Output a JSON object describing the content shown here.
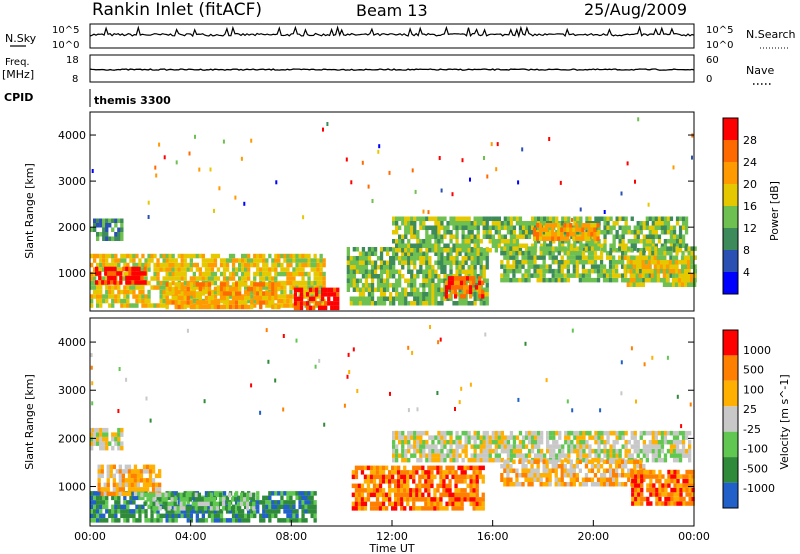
{
  "header": {
    "station": "Rankin Inlet (fitACF)",
    "beam": "Beam 13",
    "date": "25/Aug/2009"
  },
  "strip_labels": {
    "nsky": "N.Sky",
    "nsearch": "N.Search",
    "freq": "Freq.",
    "freq_unit": "[MHz]",
    "nave": "Nave",
    "cpid": "CPID",
    "cpid_value": "themis 3300"
  },
  "nsky_axis": {
    "ticks": [
      "10^5",
      "10^0"
    ]
  },
  "freq_axis": {
    "left_ticks": [
      "18",
      "8"
    ],
    "right_ticks": [
      "60",
      "0"
    ]
  },
  "colors": {
    "power": [
      "#0000ff",
      "#2a50b4",
      "#3d8a5a",
      "#6ec050",
      "#e6c800",
      "#ff9a00",
      "#ff6a00",
      "#ff0000"
    ],
    "velocity": [
      "#2060c8",
      "#2f8a3a",
      "#60c850",
      "#c8c8c8",
      "#ffb000",
      "#ff8000",
      "#ff0000"
    ]
  },
  "chart_data": [
    {
      "type": "heatmap",
      "panel": "power",
      "xlabel": "",
      "ylabel": "Slant Range [km]",
      "xlim": [
        0,
        24
      ],
      "ylim": [
        180,
        4500
      ],
      "y_ticks": [
        1000,
        2000,
        3000,
        4000
      ],
      "colorbar_label": "Power [dB]",
      "colorbar_ticks": [
        4,
        8,
        12,
        16,
        20,
        24,
        28
      ],
      "colorbar_range": [
        0,
        30
      ],
      "regions": [
        {
          "t0": 0.0,
          "t1": 1.3,
          "r0": 1700,
          "r1": 2150,
          "level": 2
        },
        {
          "t0": 0.0,
          "t1": 9.3,
          "r0": 250,
          "r1": 1400,
          "level": 4
        },
        {
          "t0": 0.2,
          "t1": 2.2,
          "r0": 750,
          "r1": 1050,
          "level": 7
        },
        {
          "t0": 3.0,
          "t1": 7.5,
          "r0": 220,
          "r1": 750,
          "level": 5
        },
        {
          "t0": 8.1,
          "t1": 9.8,
          "r0": 200,
          "r1": 650,
          "level": 7
        },
        {
          "t0": 10.2,
          "t1": 15.8,
          "r0": 300,
          "r1": 1500,
          "level": 3
        },
        {
          "t0": 14.1,
          "t1": 15.6,
          "r0": 450,
          "r1": 850,
          "level": 6
        },
        {
          "t0": 12.0,
          "t1": 23.7,
          "r0": 1450,
          "r1": 2150,
          "level": 3
        },
        {
          "t0": 17.6,
          "t1": 20.2,
          "r0": 1700,
          "r1": 2000,
          "level": 5
        },
        {
          "t0": 16.3,
          "t1": 24.0,
          "r0": 800,
          "r1": 1500,
          "level": 3
        },
        {
          "t0": 21.2,
          "t1": 24.0,
          "r0": 700,
          "r1": 1300,
          "level": 4
        }
      ]
    },
    {
      "type": "heatmap",
      "panel": "velocity",
      "xlabel": "Time UT",
      "ylabel": "Slant Range [km]",
      "xlim": [
        0,
        24
      ],
      "ylim": [
        180,
        4500
      ],
      "x_ticks": [
        "00:00",
        "04:00",
        "08:00",
        "12:00",
        "16:00",
        "20:00",
        "00:00"
      ],
      "y_ticks": [
        1000,
        2000,
        3000,
        4000
      ],
      "colorbar_label": "Velocity [m s^-1]",
      "colorbar_ticks": [
        "1000",
        "500",
        "100",
        "25",
        "-25",
        "-100",
        "-500",
        "-1000"
      ],
      "regions": [
        {
          "t0": 0.0,
          "t1": 1.3,
          "r0": 1750,
          "r1": 2150,
          "level": 3
        },
        {
          "t0": 0.0,
          "t1": 9.0,
          "r0": 250,
          "r1": 900,
          "level": 1
        },
        {
          "t0": 0.3,
          "t1": 2.8,
          "r0": 800,
          "r1": 1450,
          "level": 4
        },
        {
          "t0": 2.0,
          "t1": 6.5,
          "r0": 500,
          "r1": 800,
          "level": 2
        },
        {
          "t0": 10.4,
          "t1": 15.6,
          "r0": 500,
          "r1": 1350,
          "level": 5
        },
        {
          "t0": 12.0,
          "t1": 23.8,
          "r0": 1500,
          "r1": 2150,
          "level": 3
        },
        {
          "t0": 16.3,
          "t1": 22.0,
          "r0": 1000,
          "r1": 1500,
          "level": 4
        },
        {
          "t0": 21.5,
          "t1": 24.0,
          "r0": 600,
          "r1": 1300,
          "level": 5
        }
      ]
    }
  ]
}
